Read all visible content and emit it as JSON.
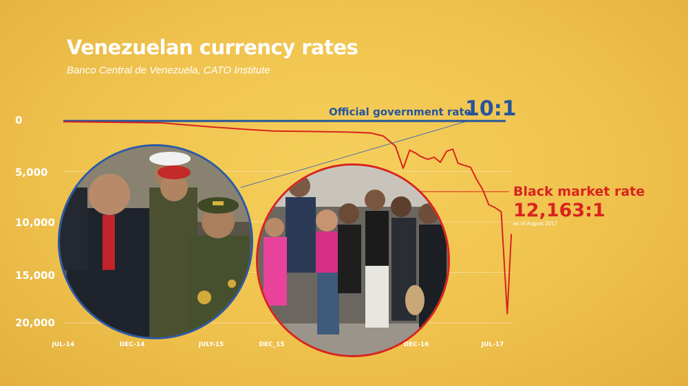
{
  "title": "Venezuelan currency rates",
  "subtitle": "Banco Central de Venezuela, CATO Institute",
  "colors": {
    "background": "#efc24d",
    "official": "#25559b",
    "black_market": "#d8231f",
    "gridline": "#f7e3a3",
    "text": "#ffffff"
  },
  "annotations": {
    "official_label": "Official government rate",
    "official_value": "10:1",
    "black_market_label": "Black market rate",
    "black_market_value": "12,163:1",
    "black_market_note": "as of August 2017"
  },
  "photos": {
    "left": "officials-photo",
    "right": "crowd-queue-photo"
  },
  "chart_data": {
    "type": "line",
    "title": "Venezuelan currency rates",
    "subtitle": "Banco Central de Venezuela, CATO Institute",
    "y_inverted": true,
    "ylim": [
      0,
      20000
    ],
    "yticks": [
      0,
      5000,
      10000,
      15000,
      20000
    ],
    "ytick_labels": [
      "0",
      "5,000",
      "10,000",
      "15,000",
      "20,000"
    ],
    "xlim": [
      "2014-07",
      "2017-07"
    ],
    "xtick_labels": [
      {
        "label": "JUL-14",
        "x": "2014-07"
      },
      {
        "label": "DEC-14",
        "x": "2014-12"
      },
      {
        "label": "JULY-15",
        "x": "2015-07"
      },
      {
        "label": "DEC_15",
        "x": "2015-12"
      },
      {
        "label": "DEC-16",
        "x": "2016-12"
      },
      {
        "label": "JUL-17",
        "x": "2017-07"
      }
    ],
    "grid": true,
    "series": [
      {
        "name": "Official government rate",
        "color": "#25559b",
        "points": [
          [
            "2014-07",
            10
          ],
          [
            "2017-07",
            10
          ]
        ]
      },
      {
        "name": "Black market rate",
        "color": "#d8231f",
        "points": [
          [
            "2014-07",
            90
          ],
          [
            "2014-12",
            150
          ],
          [
            "2015-03",
            200
          ],
          [
            "2015-07",
            600
          ],
          [
            "2015-10",
            850
          ],
          [
            "2015-12",
            1000
          ],
          [
            "2016-03",
            1050
          ],
          [
            "2016-06",
            1100
          ],
          [
            "2016-08",
            1200
          ],
          [
            "2016-09",
            1500
          ],
          [
            "2016-10",
            2500
          ],
          [
            "2016-10-20",
            4700
          ],
          [
            "2016-11-05",
            2900
          ],
          [
            "2016-11-20",
            3200
          ],
          [
            "2016-12",
            3500
          ],
          [
            "2016-12-20",
            3800
          ],
          [
            "2017-01-05",
            3600
          ],
          [
            "2017-01-20",
            4100
          ],
          [
            "2017-02-05",
            3000
          ],
          [
            "2017-02-20",
            2800
          ],
          [
            "2017-03-05",
            4200
          ],
          [
            "2017-03-20",
            4400
          ],
          [
            "2017-04-05",
            4600
          ],
          [
            "2017-04-20",
            5800
          ],
          [
            "2017-05-05",
            6800
          ],
          [
            "2017-05-20",
            8300
          ],
          [
            "2017-06-05",
            8600
          ],
          [
            "2017-06-20",
            9000
          ],
          [
            "2017-07-05",
            19100
          ],
          [
            "2017-07-15",
            11200
          ]
        ]
      }
    ]
  }
}
